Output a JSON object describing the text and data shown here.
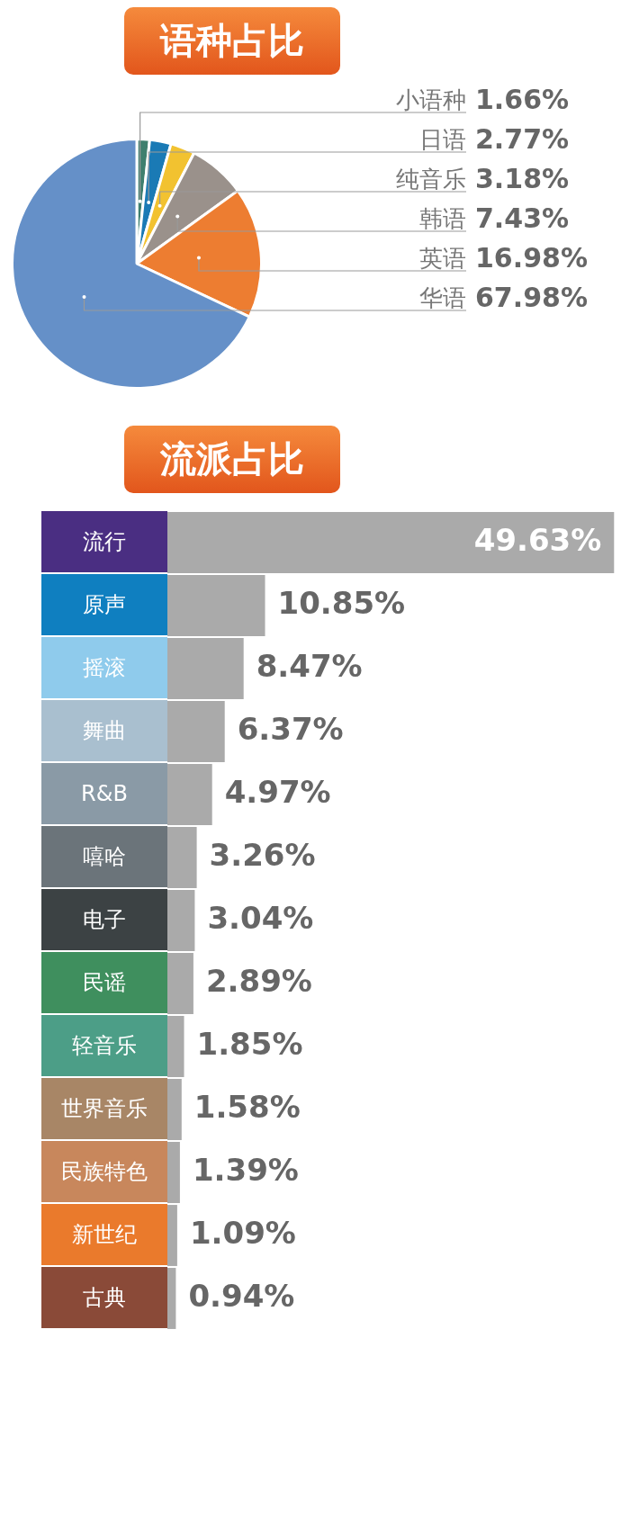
{
  "chart_data": [
    {
      "type": "pie",
      "title": "语种占比",
      "categories": [
        "小语种",
        "日语",
        "纯音乐",
        "韩语",
        "英语",
        "华语"
      ],
      "values": [
        1.66,
        2.77,
        3.18,
        7.43,
        16.98,
        67.98
      ],
      "colors": [
        "#3f7f6e",
        "#1a7ab5",
        "#f2c230",
        "#9a918b",
        "#ed7d31",
        "#6590c8"
      ],
      "value_labels": [
        "1.66%",
        "2.77%",
        "3.18%",
        "7.43%",
        "16.98%",
        "67.98%"
      ]
    },
    {
      "type": "bar",
      "orientation": "horizontal",
      "title": "流派占比",
      "categories": [
        "流行",
        "原声",
        "摇滚",
        "舞曲",
        "R&B",
        "嘻哈",
        "电子",
        "民谣",
        "轻音乐",
        "世界音乐",
        "民族特色",
        "新世纪",
        "古典"
      ],
      "values": [
        49.63,
        10.85,
        8.47,
        6.37,
        4.97,
        3.26,
        3.04,
        2.89,
        1.85,
        1.58,
        1.39,
        1.09,
        0.94
      ],
      "color": "#aaaaaa",
      "value_labels": [
        "49.63%",
        "10.85%",
        "8.47%",
        "6.37%",
        "4.97%",
        "3.26%",
        "3.04%",
        "2.89%",
        "1.85%",
        "1.58%",
        "1.39%",
        "1.09%",
        "0.94%"
      ]
    }
  ]
}
